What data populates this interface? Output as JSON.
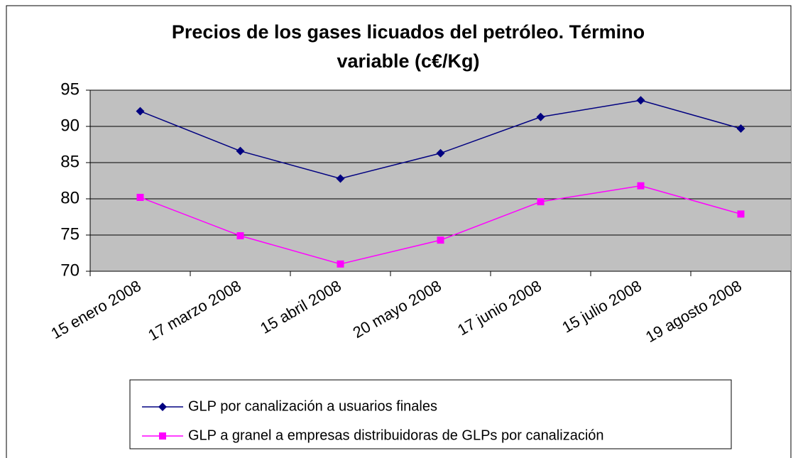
{
  "chart_data": {
    "type": "line",
    "title": [
      "Precios de los gases licuados del petróleo. Término",
      "variable (c€/Kg)"
    ],
    "categories": [
      "15 enero 2008",
      "17 marzo 2008",
      "15 abril 2008",
      "20 mayo 2008",
      "17 junio 2008",
      "15 julio 2008",
      "19 agosto 2008"
    ],
    "series": [
      {
        "name": "GLP por canalización a usuarios finales",
        "color": "#000080",
        "marker": "diamond",
        "values": [
          92.1,
          86.6,
          82.8,
          86.3,
          91.3,
          93.6,
          89.7
        ]
      },
      {
        "name": "GLP a granel a empresas distribuidoras de GLPs por canalización",
        "color": "#ff00ff",
        "marker": "square",
        "values": [
          80.2,
          74.9,
          71.0,
          74.3,
          79.6,
          81.8,
          77.9
        ]
      }
    ],
    "ylim": [
      70,
      95
    ],
    "yticks": [
      70,
      75,
      80,
      85,
      90,
      95
    ],
    "grid": true,
    "legend": "bottom"
  }
}
